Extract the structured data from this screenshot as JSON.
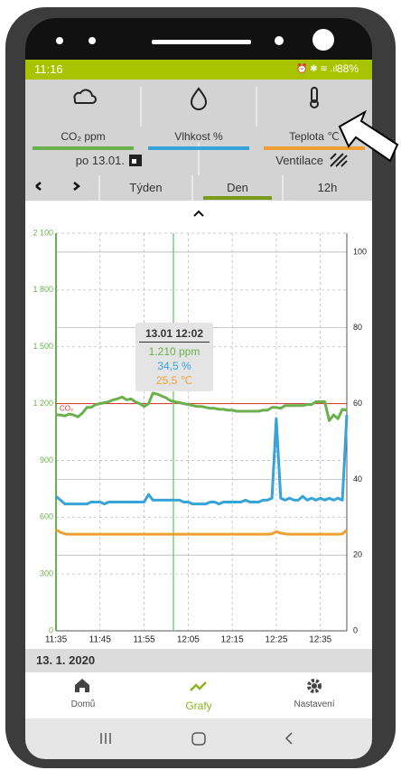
{
  "status_bar": {
    "time": "11:16",
    "battery": "88%"
  },
  "tabs": [
    {
      "label": "CO₂ ppm",
      "color": "#6ab04c"
    },
    {
      "label": "Vlhkost %",
      "color": "#36a3d9"
    },
    {
      "label": "Teplota ℃",
      "color": "#f0a030"
    }
  ],
  "date": "po 13.01.",
  "mode": "Ventilace",
  "range_nav": {
    "options": [
      "Týden",
      "Den",
      "12h"
    ],
    "selected": 1
  },
  "chart_data": {
    "type": "line",
    "x": [
      "11:35",
      "11:36",
      "11:37",
      "11:38",
      "11:39",
      "11:40",
      "11:41",
      "11:42",
      "11:43",
      "11:44",
      "11:45",
      "11:46",
      "11:47",
      "11:48",
      "11:49",
      "11:50",
      "11:51",
      "11:52",
      "11:53",
      "11:54",
      "11:55",
      "11:56",
      "11:57",
      "11:58",
      "11:59",
      "12:00",
      "12:01",
      "12:02",
      "12:03",
      "12:04",
      "12:05",
      "12:06",
      "12:07",
      "12:08",
      "12:09",
      "12:10",
      "12:11",
      "12:12",
      "12:13",
      "12:14",
      "12:15",
      "12:16",
      "12:17",
      "12:18",
      "12:19",
      "12:20",
      "12:21",
      "12:22",
      "12:23",
      "12:24",
      "12:25",
      "12:26",
      "12:27",
      "12:28",
      "12:29",
      "12:30",
      "12:31",
      "12:32",
      "12:33",
      "12:34",
      "12:35",
      "12:36",
      "12:37",
      "12:38",
      "12:39",
      "12:40",
      "12:41"
    ],
    "xlim": [
      "11:35",
      "12:41"
    ],
    "xticks": [
      "11:35",
      "11:45",
      "11:55",
      "12:05",
      "12:15",
      "12:25",
      "12:35"
    ],
    "series": [
      {
        "name": "CO₂ ppm",
        "color": "#6ab04c",
        "values": [
          1140,
          1140,
          1135,
          1145,
          1140,
          1130,
          1150,
          1180,
          1180,
          1195,
          1200,
          1205,
          1210,
          1220,
          1225,
          1235,
          1220,
          1225,
          1210,
          1200,
          1185,
          1200,
          1255,
          1250,
          1240,
          1230,
          1215,
          1210,
          1205,
          1200,
          1195,
          1190,
          1185,
          1185,
          1180,
          1175,
          1175,
          1170,
          1170,
          1165,
          1165,
          1160,
          1160,
          1160,
          1160,
          1160,
          1160,
          1165,
          1165,
          1180,
          1180,
          1175,
          1190,
          1190,
          1190,
          1190,
          1190,
          1195,
          1195,
          1210,
          1210,
          1210,
          1110,
          1140,
          1120,
          1170,
          1165
        ]
      },
      {
        "name": "Vlhkost %",
        "color": "#36a3d9",
        "axis": "y2",
        "values": [
          35.5,
          34.5,
          33.5,
          33.5,
          33.5,
          33.5,
          33.5,
          33.5,
          34,
          34,
          34,
          33.5,
          34,
          34,
          34,
          34,
          34,
          34,
          34,
          34,
          34,
          36,
          34.5,
          34.5,
          34.5,
          34.5,
          34.5,
          34.5,
          34.5,
          34,
          34,
          33.5,
          33.5,
          33.5,
          33.5,
          34,
          34,
          33.5,
          34,
          34,
          34,
          34,
          34,
          34.5,
          34,
          34,
          34,
          34.5,
          34.5,
          35,
          56,
          35,
          34.5,
          35,
          34.5,
          34.5,
          35.5,
          34.5,
          35,
          34.5,
          35,
          34.5,
          35,
          34.5,
          35,
          34.5,
          57
        ]
      },
      {
        "name": "Teplota ℃",
        "color": "#f0a030",
        "axis": "y2",
        "values": [
          26.7,
          26,
          25.6,
          25.5,
          25.5,
          25.5,
          25.5,
          25.5,
          25.5,
          25.5,
          25.5,
          25.5,
          25.5,
          25.5,
          25.5,
          25.5,
          25.5,
          25.5,
          25.5,
          25.5,
          25.5,
          25.5,
          25.5,
          25.5,
          25.5,
          25.5,
          25.5,
          25.5,
          25.5,
          25.5,
          25.5,
          25.5,
          25.5,
          25.5,
          25.5,
          25.5,
          25.5,
          25.5,
          25.5,
          25.5,
          25.5,
          25.5,
          25.5,
          25.5,
          25.5,
          25.5,
          25.5,
          25.5,
          25.5,
          25.6,
          26.2,
          25.8,
          25.6,
          25.5,
          25.5,
          25.5,
          25.5,
          25.5,
          25.5,
          25.5,
          25.5,
          25.5,
          25.5,
          25.5,
          25.5,
          25.6,
          26.6
        ]
      }
    ],
    "ylim": [
      0,
      2100
    ],
    "yticks": [
      0,
      300,
      600,
      900,
      {
        "value": 1200,
        "label": "1 200"
      },
      {
        "value": 1500,
        "label": "1 500"
      },
      {
        "value": 1800,
        "label": "1 800"
      },
      {
        "value": 2100,
        "label": "2 100"
      }
    ],
    "y2lim": [
      0,
      105
    ],
    "y2ticks": [
      0,
      20,
      40,
      60,
      80,
      100
    ],
    "grid": true,
    "threshold": {
      "label": "CO₂",
      "value": 1200,
      "color": "#d9342b"
    },
    "tooltip": {
      "title": "13.01 12:02",
      "lines": [
        "1.210 ppm",
        "34,5 %",
        "25,5 ℃"
      ]
    }
  },
  "date_footer": "13. 1. 2020",
  "nav": {
    "items": [
      "Domů",
      "Grafy",
      "Nastavení"
    ],
    "selected": 1
  }
}
